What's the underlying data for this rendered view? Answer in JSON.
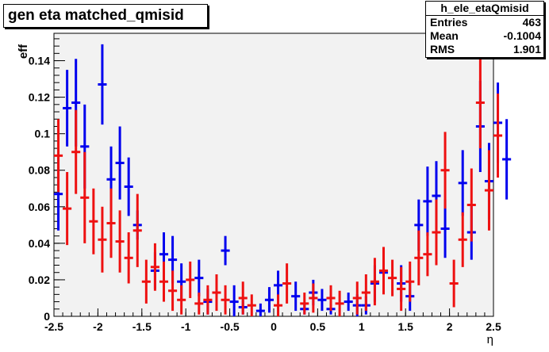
{
  "title": "gen eta matched_qmisid",
  "stats": {
    "name": "h_ele_etaQmisid",
    "rows": [
      {
        "label": "Entries",
        "value": "463"
      },
      {
        "label": "Mean",
        "value": "-0.1004"
      },
      {
        "label": "RMS",
        "value": "1.901"
      }
    ]
  },
  "chart_data": {
    "type": "scatter",
    "title": "gen eta matched_qmisid",
    "xlabel": "η",
    "ylabel": "eff",
    "xlim": [
      -2.5,
      2.5
    ],
    "ylim": [
      0,
      0.155
    ],
    "bin_width": 0.1,
    "xticks": [
      -2.5,
      -2,
      -1.5,
      -1,
      -0.5,
      0,
      0.5,
      1,
      1.5,
      2,
      2.5
    ],
    "xtick_labels": [
      "-2.5",
      "-2",
      "-1.5",
      "-1",
      "-0.5",
      "0",
      "0.5",
      "1",
      "1.5",
      "2",
      "2.5"
    ],
    "yticks": [
      0,
      0.02,
      0.04,
      0.06,
      0.08,
      0.1,
      0.12,
      0.14
    ],
    "ytick_labels": [
      "0",
      "0.02",
      "0.04",
      "0.06",
      "0.08",
      "0.1",
      "0.12",
      "0.14"
    ],
    "grid": false,
    "series": [
      {
        "color": "#0000ee",
        "points": [
          {
            "x": -2.45,
            "y": 0.067,
            "err": 0.02
          },
          {
            "x": -2.35,
            "y": 0.114,
            "err": 0.021
          },
          {
            "x": -2.25,
            "y": 0.117,
            "err": 0.024
          },
          {
            "x": -2.15,
            "y": 0.093,
            "err": 0.023
          },
          {
            "x": -1.95,
            "y": 0.127,
            "err": 0.022
          },
          {
            "x": -1.85,
            "y": 0.075,
            "err": 0.018
          },
          {
            "x": -1.75,
            "y": 0.084,
            "err": 0.02
          },
          {
            "x": -1.65,
            "y": 0.071,
            "err": 0.016
          },
          {
            "x": -1.55,
            "y": 0.05,
            "err": 0.008
          },
          {
            "x": -1.35,
            "y": 0.025,
            "err": 0.01
          },
          {
            "x": -1.25,
            "y": 0.034,
            "err": 0.012
          },
          {
            "x": -1.15,
            "y": 0.031,
            "err": 0.013
          },
          {
            "x": -1.05,
            "y": 0.019,
            "err": 0.01
          },
          {
            "x": -0.85,
            "y": 0.021,
            "err": 0.01
          },
          {
            "x": -0.75,
            "y": 0.008,
            "err": 0.007
          },
          {
            "x": -0.55,
            "y": 0.036,
            "err": 0.008
          },
          {
            "x": -0.45,
            "y": 0.008,
            "err": 0.009
          },
          {
            "x": -0.35,
            "y": 0.005,
            "err": 0.004
          },
          {
            "x": -0.15,
            "y": 0.003,
            "err": 0.004
          },
          {
            "x": -0.05,
            "y": 0.009,
            "err": 0.007
          },
          {
            "x": 0.05,
            "y": 0.017,
            "err": 0.008
          },
          {
            "x": 0.25,
            "y": 0.011,
            "err": 0.008
          },
          {
            "x": 0.35,
            "y": 0.004,
            "err": 0.003
          },
          {
            "x": 0.45,
            "y": 0.013,
            "err": 0.007
          },
          {
            "x": 0.55,
            "y": 0.009,
            "err": 0.006
          },
          {
            "x": 0.65,
            "y": 0.004,
            "err": 0.003
          },
          {
            "x": 0.85,
            "y": 0.008,
            "err": 0.005
          },
          {
            "x": 0.95,
            "y": 0.006,
            "err": 0.006
          },
          {
            "x": 1.05,
            "y": 0.006,
            "err": 0.005
          },
          {
            "x": 1.15,
            "y": 0.018,
            "err": 0.01
          },
          {
            "x": 1.25,
            "y": 0.024,
            "err": 0.011
          },
          {
            "x": 1.45,
            "y": 0.018,
            "err": 0.01
          },
          {
            "x": 1.55,
            "y": 0.011,
            "err": 0.008
          },
          {
            "x": 1.65,
            "y": 0.05,
            "err": 0.014
          },
          {
            "x": 1.75,
            "y": 0.063,
            "err": 0.019
          },
          {
            "x": 1.85,
            "y": 0.066,
            "err": 0.019
          },
          {
            "x": 1.95,
            "y": 0.048,
            "err": 0.016
          },
          {
            "x": 2.15,
            "y": 0.073,
            "err": 0.018
          },
          {
            "x": 2.25,
            "y": 0.046,
            "err": 0.015
          },
          {
            "x": 2.35,
            "y": 0.104,
            "err": 0.025
          },
          {
            "x": 2.45,
            "y": 0.074,
            "err": 0.021
          },
          {
            "x": 2.55,
            "y": 0.106,
            "err": 0.022
          },
          {
            "x": 2.65,
            "y": 0.086,
            "err": 0.022
          }
        ]
      },
      {
        "color": "#ee1111",
        "points": [
          {
            "x": -2.45,
            "y": 0.088,
            "err": 0.02
          },
          {
            "x": -2.35,
            "y": 0.059,
            "err": 0.02
          },
          {
            "x": -2.25,
            "y": 0.09,
            "err": 0.023
          },
          {
            "x": -2.15,
            "y": 0.065,
            "err": 0.025
          },
          {
            "x": -2.05,
            "y": 0.052,
            "err": 0.018
          },
          {
            "x": -1.95,
            "y": 0.042,
            "err": 0.018
          },
          {
            "x": -1.85,
            "y": 0.051,
            "err": 0.019
          },
          {
            "x": -1.75,
            "y": 0.041,
            "err": 0.017
          },
          {
            "x": -1.65,
            "y": 0.032,
            "err": 0.014
          },
          {
            "x": -1.55,
            "y": 0.047,
            "err": 0.02
          },
          {
            "x": -1.45,
            "y": 0.019,
            "err": 0.012
          },
          {
            "x": -1.35,
            "y": 0.027,
            "err": 0.013
          },
          {
            "x": -1.25,
            "y": 0.019,
            "err": 0.011
          },
          {
            "x": -1.15,
            "y": 0.014,
            "err": 0.011
          },
          {
            "x": -1.05,
            "y": 0.009,
            "err": 0.008
          },
          {
            "x": -0.95,
            "y": 0.02,
            "err": 0.01
          },
          {
            "x": -0.85,
            "y": 0.007,
            "err": 0.006
          },
          {
            "x": -0.75,
            "y": 0.009,
            "err": 0.008
          },
          {
            "x": -0.65,
            "y": 0.013,
            "err": 0.01
          },
          {
            "x": -0.55,
            "y": 0.009,
            "err": 0.008
          },
          {
            "x": -0.35,
            "y": 0.01,
            "err": 0.009
          },
          {
            "x": -0.25,
            "y": 0.006,
            "err": 0.006
          },
          {
            "x": 0.05,
            "y": 0.006,
            "err": 0.006
          },
          {
            "x": 0.15,
            "y": 0.018,
            "err": 0.011
          },
          {
            "x": 0.35,
            "y": 0.007,
            "err": 0.006
          },
          {
            "x": 0.45,
            "y": 0.01,
            "err": 0.008
          },
          {
            "x": 0.65,
            "y": 0.01,
            "err": 0.007
          },
          {
            "x": 0.75,
            "y": 0.007,
            "err": 0.007
          },
          {
            "x": 0.95,
            "y": 0.01,
            "err": 0.009
          },
          {
            "x": 1.05,
            "y": 0.013,
            "err": 0.01
          },
          {
            "x": 1.15,
            "y": 0.019,
            "err": 0.013
          },
          {
            "x": 1.25,
            "y": 0.025,
            "err": 0.013
          },
          {
            "x": 1.35,
            "y": 0.021,
            "err": 0.01
          },
          {
            "x": 1.45,
            "y": 0.015,
            "err": 0.012
          },
          {
            "x": 1.55,
            "y": 0.019,
            "err": 0.011
          },
          {
            "x": 1.65,
            "y": 0.032,
            "err": 0.015
          },
          {
            "x": 1.75,
            "y": 0.034,
            "err": 0.012
          },
          {
            "x": 1.85,
            "y": 0.046,
            "err": 0.018
          },
          {
            "x": 1.95,
            "y": 0.08,
            "err": 0.021
          },
          {
            "x": 2.05,
            "y": 0.018,
            "err": 0.013
          },
          {
            "x": 2.15,
            "y": 0.042,
            "err": 0.015
          },
          {
            "x": 2.25,
            "y": 0.061,
            "err": 0.02
          },
          {
            "x": 2.35,
            "y": 0.117,
            "err": 0.025
          },
          {
            "x": 2.45,
            "y": 0.069,
            "err": 0.022
          },
          {
            "x": 2.55,
            "y": 0.099,
            "err": 0.023
          }
        ]
      }
    ]
  }
}
